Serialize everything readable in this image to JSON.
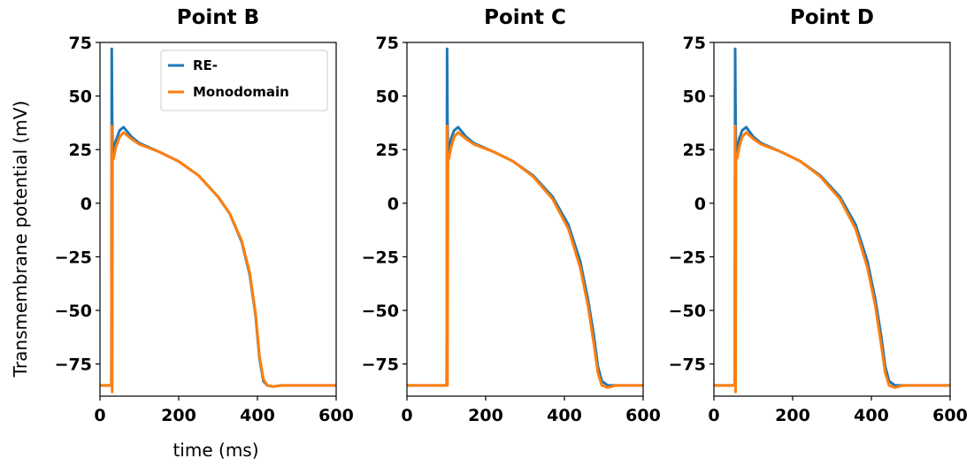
{
  "colors": {
    "re": "#1f77b4",
    "mono": "#ff7f0e"
  },
  "legend": {
    "entries": [
      "RE-",
      "Monodomain"
    ],
    "placement": "upper-right of first panel"
  },
  "ylabel": "Transmembrane potential (mV)",
  "xlabel": "time (ms)",
  "chart_data": [
    {
      "type": "line",
      "title": "Point B",
      "xlim": [
        0,
        600
      ],
      "ylim": [
        -90,
        75
      ],
      "xticks": [
        0,
        200,
        400,
        600
      ],
      "yticks": [
        75,
        50,
        25,
        0,
        -25,
        -50,
        -75
      ],
      "series": [
        {
          "name": "RE-",
          "x": [
            0,
            29,
            30,
            31,
            32,
            35,
            40,
            50,
            60,
            80,
            100,
            150,
            200,
            250,
            300,
            330,
            360,
            380,
            395,
            405,
            415,
            425,
            440,
            460,
            500,
            600
          ],
          "y": [
            -85,
            -85,
            72,
            40,
            28,
            24,
            29,
            34,
            35.5,
            31,
            28,
            24,
            19.5,
            13,
            3,
            -5,
            -18,
            -33,
            -52,
            -72,
            -83,
            -85,
            -85.5,
            -85,
            -85,
            -85
          ]
        },
        {
          "name": "Monodomain",
          "x": [
            0,
            29,
            30,
            31,
            32,
            35,
            40,
            50,
            60,
            80,
            100,
            150,
            200,
            250,
            300,
            330,
            360,
            380,
            395,
            405,
            415,
            425,
            440,
            460,
            500,
            600
          ],
          "y": [
            -85,
            -85,
            36,
            -88,
            20,
            21,
            26,
            31,
            33,
            30,
            27.5,
            24,
            19.5,
            13,
            3,
            -5,
            -17.5,
            -32,
            -51,
            -71,
            -82,
            -85,
            -85.5,
            -85,
            -85,
            -85
          ]
        }
      ]
    },
    {
      "type": "line",
      "title": "Point C",
      "xlim": [
        0,
        600
      ],
      "ylim": [
        -90,
        75
      ],
      "xticks": [
        0,
        200,
        400,
        600
      ],
      "yticks": [
        75,
        50,
        25,
        0,
        -25,
        -50,
        -75
      ],
      "series": [
        {
          "name": "RE-",
          "x": [
            0,
            101,
            102,
            103,
            104,
            107,
            112,
            120,
            130,
            150,
            170,
            220,
            270,
            320,
            370,
            410,
            440,
            460,
            475,
            485,
            495,
            510,
            530,
            600
          ],
          "y": [
            -85,
            -85,
            72,
            40,
            26,
            24,
            30,
            34,
            35.5,
            31,
            28,
            24,
            19.5,
            13,
            3,
            -10,
            -27,
            -45,
            -62,
            -76,
            -83,
            -85,
            -85,
            -85
          ]
        },
        {
          "name": "Monodomain",
          "x": [
            0,
            101,
            102,
            103,
            104,
            107,
            112,
            120,
            130,
            150,
            170,
            220,
            270,
            320,
            370,
            410,
            440,
            460,
            475,
            485,
            495,
            510,
            530,
            600
          ],
          "y": [
            -85,
            -85,
            36,
            -85,
            20,
            21,
            26,
            31,
            33,
            30,
            27.5,
            24,
            19.5,
            12.5,
            2,
            -12,
            -30,
            -48,
            -66,
            -79,
            -85,
            -86,
            -85,
            -85
          ]
        }
      ]
    },
    {
      "type": "line",
      "title": "Point D",
      "xlim": [
        0,
        600
      ],
      "ylim": [
        -90,
        75
      ],
      "xticks": [
        0,
        200,
        400,
        600
      ],
      "yticks": [
        75,
        50,
        25,
        0,
        -25,
        -50,
        -75
      ],
      "series": [
        {
          "name": "RE-",
          "x": [
            0,
            53,
            54,
            55,
            56,
            59,
            64,
            72,
            82,
            100,
            120,
            170,
            220,
            270,
            320,
            360,
            390,
            410,
            425,
            435,
            445,
            460,
            480,
            600
          ],
          "y": [
            -85,
            -85,
            72,
            40,
            26,
            24,
            30,
            34,
            35.5,
            31,
            28,
            24,
            19.5,
            13,
            3,
            -10,
            -27,
            -45,
            -62,
            -76,
            -83,
            -85,
            -85,
            -85
          ]
        },
        {
          "name": "Monodomain",
          "x": [
            0,
            53,
            54,
            55,
            56,
            59,
            64,
            72,
            82,
            100,
            120,
            170,
            220,
            270,
            320,
            360,
            390,
            410,
            425,
            435,
            445,
            460,
            480,
            600
          ],
          "y": [
            -85,
            -85,
            36,
            -88,
            20,
            21,
            26,
            31,
            33,
            30,
            27.5,
            24,
            19.5,
            12.5,
            2,
            -12,
            -30,
            -48,
            -66,
            -79,
            -85,
            -86,
            -85,
            -85
          ]
        }
      ]
    }
  ]
}
